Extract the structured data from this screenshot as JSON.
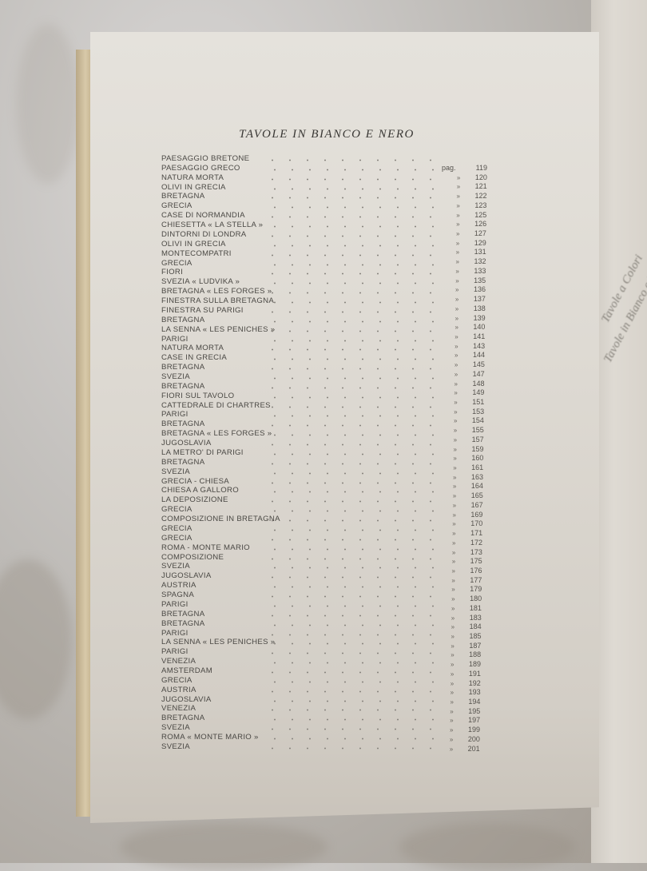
{
  "document": {
    "title": "TAVOLE IN BIANCO E NERO",
    "page_prefix": "pag.",
    "ditto_mark": "»",
    "entries": [
      "PAESAGGIO BRETONE",
      "PAESAGGIO GRECO",
      "NATURA MORTA",
      "OLIVI IN GRECIA",
      "BRETAGNA",
      "GRECIA",
      "CASE DI NORMANDIA",
      "CHIESETTA « LA STELLA »",
      "DINTORNI DI LONDRA",
      "OLIVI IN GRECIA",
      "MONTECOMPATRI",
      "GRECIA",
      "FIORI",
      "SVEZIA « LUDVIKA »",
      "BRETAGNA « LES FORGES »",
      "FINESTRA SULLA BRETAGNA",
      "FINESTRA SU PARIGI",
      "BRETAGNA",
      "LA SENNA « LES PENICHES »",
      "PARIGI",
      "NATURA MORTA",
      "CASE IN GRECIA",
      "BRETAGNA",
      "SVEZIA",
      "BRETAGNA",
      "FIORI SUL TAVOLO",
      "CATTEDRALE DI CHARTRES",
      "PARIGI",
      "BRETAGNA",
      "BRETAGNA « LES FORGES »",
      "JUGOSLAVIA",
      "LA METRO' DI PARIGI",
      "BRETAGNA",
      "SVEZIA",
      "GRECIA - CHIESA",
      "CHIESA A GALLORO",
      "LA DEPOSIZIONE",
      "GRECIA",
      "COMPOSIZIONE IN BRETAGNA",
      "GRECIA",
      "GRECIA",
      "ROMA - MONTE MARIO",
      "COMPOSIZIONE",
      "SVEZIA",
      "JUGOSLAVIA",
      "AUSTRIA",
      "SPAGNA",
      "PARIGI",
      "BRETAGNA",
      "BRETAGNA",
      "PARIGI",
      "LA SENNA « LES PENICHES »",
      "PARIGI",
      "VENEZIA",
      "AMSTERDAM",
      "GRECIA",
      "AUSTRIA",
      "JUGOSLAVIA",
      "VENEZIA",
      "BRETAGNA",
      "SVEZIA",
      "ROMA « MONTE MARIO »",
      "SVEZIA"
    ],
    "page_numbers": [
      "119",
      "120",
      "121",
      "122",
      "123",
      "125",
      "126",
      "127",
      "129",
      "131",
      "132",
      "133",
      "135",
      "136",
      "137",
      "138",
      "139",
      "140",
      "141",
      "143",
      "144",
      "145",
      "147",
      "148",
      "149",
      "151",
      "153",
      "154",
      "155",
      "157",
      "159",
      "160",
      "161",
      "163",
      "164",
      "165",
      "167",
      "169",
      "170",
      "171",
      "172",
      "173",
      "175",
      "176",
      "177",
      "179",
      "180",
      "181",
      "183",
      "184",
      "185",
      "187",
      "188",
      "189",
      "191",
      "192",
      "193",
      "194",
      "195",
      "197",
      "199",
      "200",
      "201"
    ]
  },
  "facing_page": {
    "fragments": [
      "Tavole a Colori",
      "Tavole in Bianco e N"
    ]
  },
  "colors": {
    "page": "#dedad3",
    "text": "#4a4844",
    "background": "#bdbab6"
  }
}
